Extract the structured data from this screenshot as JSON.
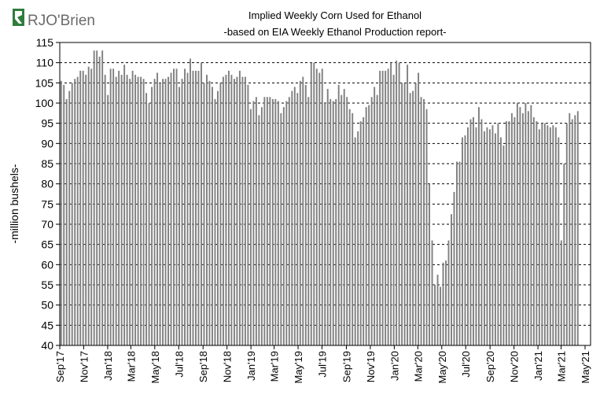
{
  "logo": {
    "text": "RJO'Brien",
    "color": "#2f7d3b"
  },
  "chart_data": {
    "type": "bar",
    "title": "Implied  Weekly Corn Used for Ethanol",
    "subtitle": "-based on EIA Weekly Ethanol Production report-",
    "ylabel": "-million bushels-",
    "xlabel": "",
    "ylim": [
      40,
      115
    ],
    "yticks": [
      40,
      45,
      50,
      55,
      60,
      65,
      70,
      75,
      80,
      85,
      90,
      95,
      100,
      105,
      110,
      115
    ],
    "grid": "horizontal dashed",
    "bar_color": "#808080",
    "x_start": "2017-09-01",
    "x_end": "2021-05-15",
    "x_tick_labels": [
      "Sep'17",
      "Nov'17",
      "Jan'18",
      "Mar'18",
      "May'18",
      "Jul'18",
      "Sep'18",
      "Nov'18",
      "Jan'19",
      "Mar'19",
      "May'19",
      "Jul'19",
      "Sep'19",
      "Nov'19",
      "Jan'20",
      "Mar'20",
      "May'20",
      "Jul'20",
      "Sep'20",
      "Nov'20",
      "Jan'21",
      "Mar'21",
      "May'21"
    ],
    "series": [
      {
        "values": [
          105.5,
          104.5,
          101,
          103,
          105,
          106,
          106.5,
          108,
          108,
          107,
          109,
          108.5,
          113,
          113,
          111.5,
          113,
          107,
          102,
          108.5,
          108.5,
          106.5,
          108,
          107,
          109.5,
          107,
          106,
          108,
          107,
          106.5,
          106.5,
          106,
          102.5,
          100,
          104,
          106,
          107.5,
          105,
          106,
          106,
          106.5,
          107.5,
          108.5,
          108.5,
          104,
          106,
          108.5,
          107.5,
          111,
          108,
          108,
          108,
          110,
          105,
          107,
          105.5,
          104,
          101,
          103,
          105,
          106.5,
          107,
          108,
          107,
          106,
          106.5,
          108,
          106.5,
          106.5,
          104.5,
          98.5,
          100.5,
          101.5,
          97,
          99,
          101.5,
          101.5,
          101.5,
          101,
          101,
          100.5,
          97.5,
          99,
          100.5,
          101.5,
          103,
          104,
          102.5,
          105.5,
          106.5,
          104.5,
          101.5,
          110,
          110,
          108.5,
          107.5,
          108.5,
          100,
          103.5,
          101,
          100.5,
          101,
          104.5,
          102,
          103.5,
          101.5,
          98.5,
          97.5,
          91.5,
          93,
          95.5,
          96.5,
          99,
          99.5,
          101.5,
          104,
          102,
          108,
          108,
          108,
          108.5,
          110,
          107,
          110.5,
          110,
          105,
          105,
          109.5,
          102.5,
          103,
          105,
          107.5,
          101.5,
          101,
          98.5,
          80,
          66,
          55,
          57.5,
          54.5,
          60.5,
          61,
          66,
          72.5,
          78,
          85.5,
          85.5,
          91.5,
          92,
          94,
          96,
          96.5,
          94,
          99,
          96,
          93,
          94,
          93.5,
          94.5,
          92.5,
          95,
          91.5,
          89.5,
          95.5,
          95.5,
          97.5,
          96.5,
          100,
          99,
          97.5,
          100,
          98,
          99.5,
          96.5,
          95.5,
          93.5,
          95,
          95,
          94.5,
          94,
          94.5,
          94,
          91.5,
          66,
          85,
          95,
          97.5,
          96,
          97,
          98
        ]
      }
    ]
  }
}
